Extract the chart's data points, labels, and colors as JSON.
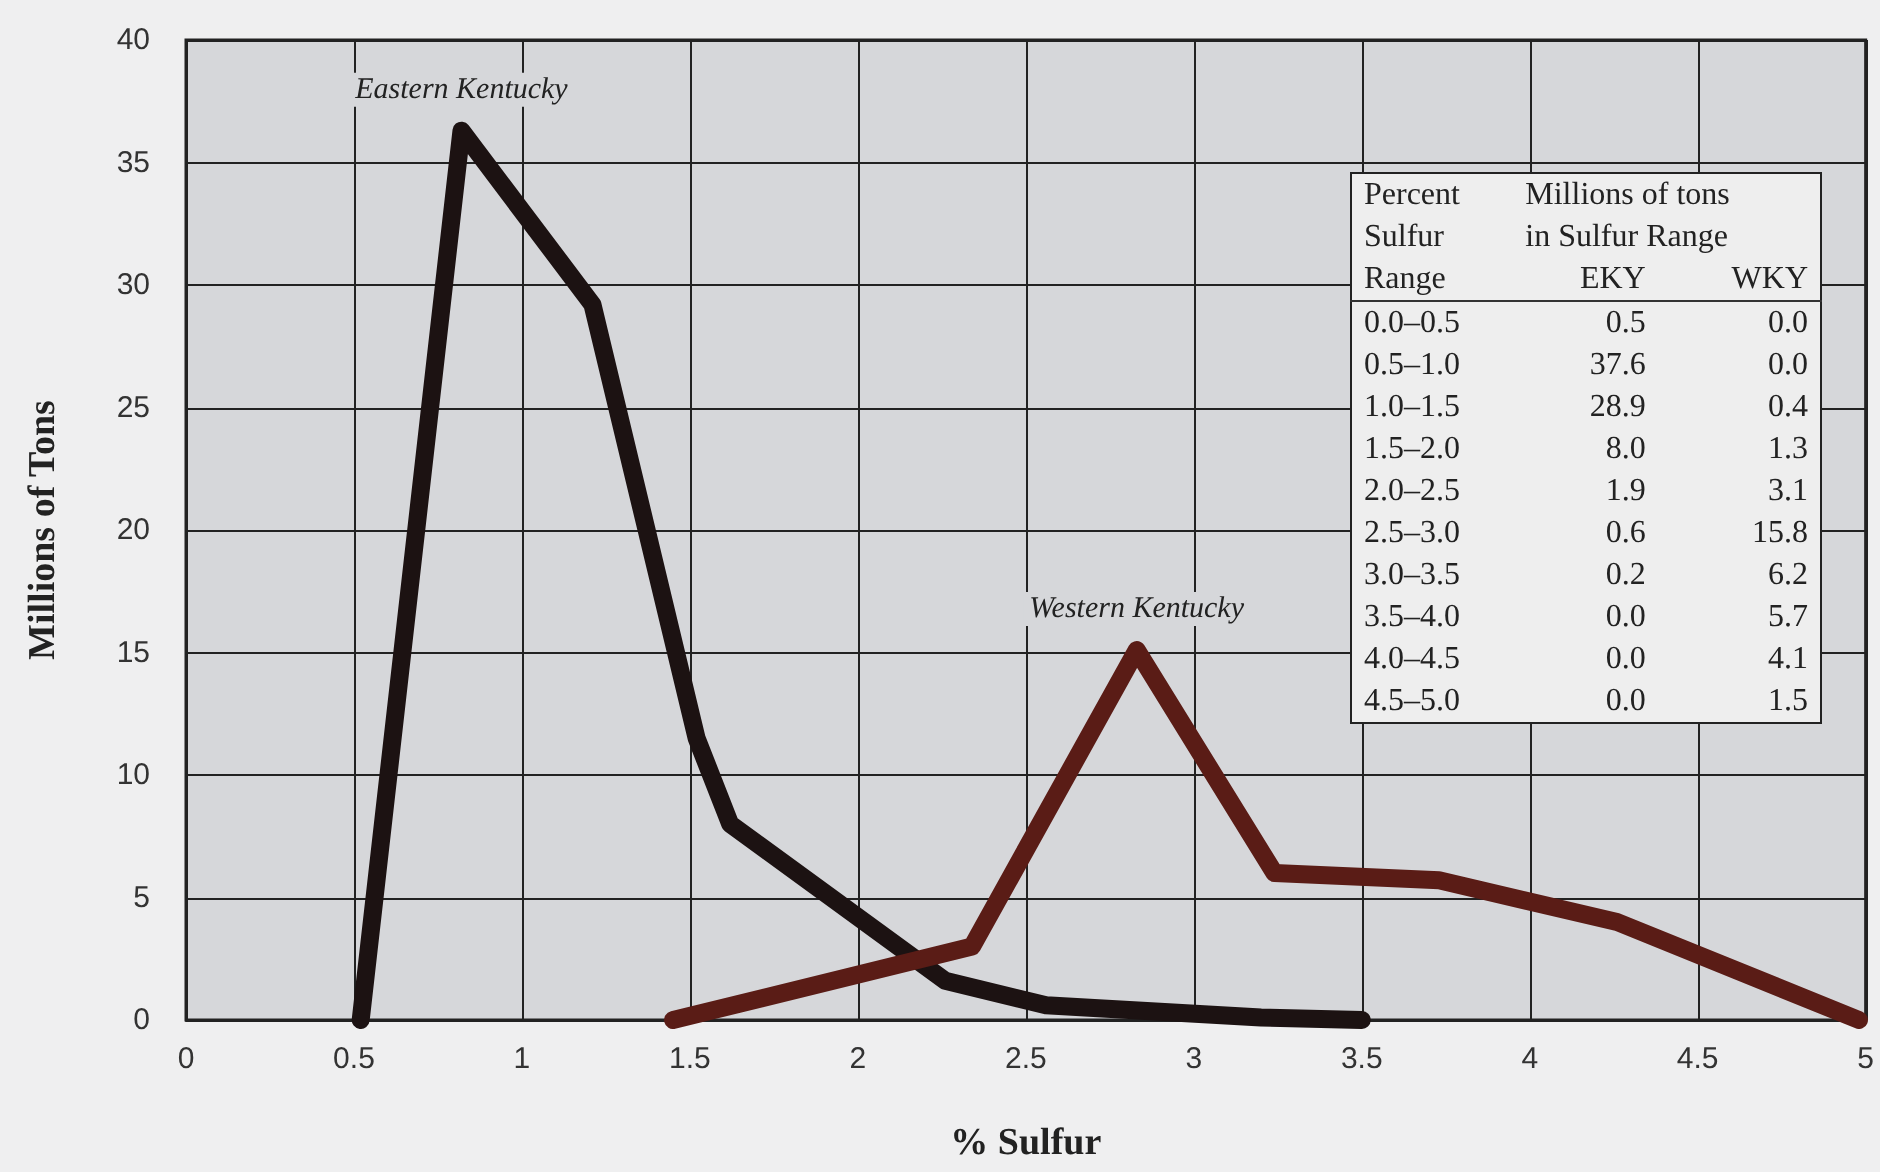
{
  "chart_data": {
    "type": "line",
    "xlabel": "% Sulfur",
    "ylabel": "Millions of Tons",
    "xlim": [
      0,
      5
    ],
    "xticks": [
      0,
      0.5,
      1,
      1.5,
      2,
      2.5,
      3,
      3.5,
      4,
      4.5,
      5
    ],
    "ylim": [
      0,
      40
    ],
    "yticks": [
      0,
      5,
      10,
      15,
      20,
      25,
      30,
      35,
      40
    ],
    "grid": true,
    "marker": "none",
    "line_style": "solid",
    "legend": false,
    "series": [
      {
        "name": "Eastern Kentucky",
        "color": "#1c1212",
        "x": [
          0.52,
          0.82,
          1.21,
          1.52,
          1.62,
          2.26,
          2.56,
          3.2,
          3.5
        ],
        "values": [
          0,
          36.3,
          29.2,
          11.5,
          8.0,
          1.6,
          0.6,
          0.1,
          0
        ]
      },
      {
        "name": "Western Kentucky",
        "color": "#5a1c16",
        "x": [
          1.45,
          2.34,
          2.83,
          3.24,
          3.73,
          4.26,
          4.98
        ],
        "values": [
          0,
          3.0,
          15.1,
          6.0,
          5.7,
          4.0,
          0
        ]
      }
    ],
    "annotations": [
      "Percent\tMillions of tons",
      "Sulfur\tin Sulfur Range",
      "Range\tEKY\tWKY",
      "0.0–0.5\t0.5\t0.0",
      "0.5–1.0\t37.6\t0.0",
      "1.0–1.5\t28.9\t0.4",
      "1.5–2.0\t8.0\t1.3",
      "2.0–2.5\t1.9\t3.1",
      "2.5–3.0\t0.6\t15.8",
      "3.0–3.5\t0.2\t6.2",
      "3.5–4.0\t0.0\t5.7",
      "4.0–4.5\t0.0\t4.1",
      "4.5–5.0\t0.0\t1.5"
    ]
  }
}
